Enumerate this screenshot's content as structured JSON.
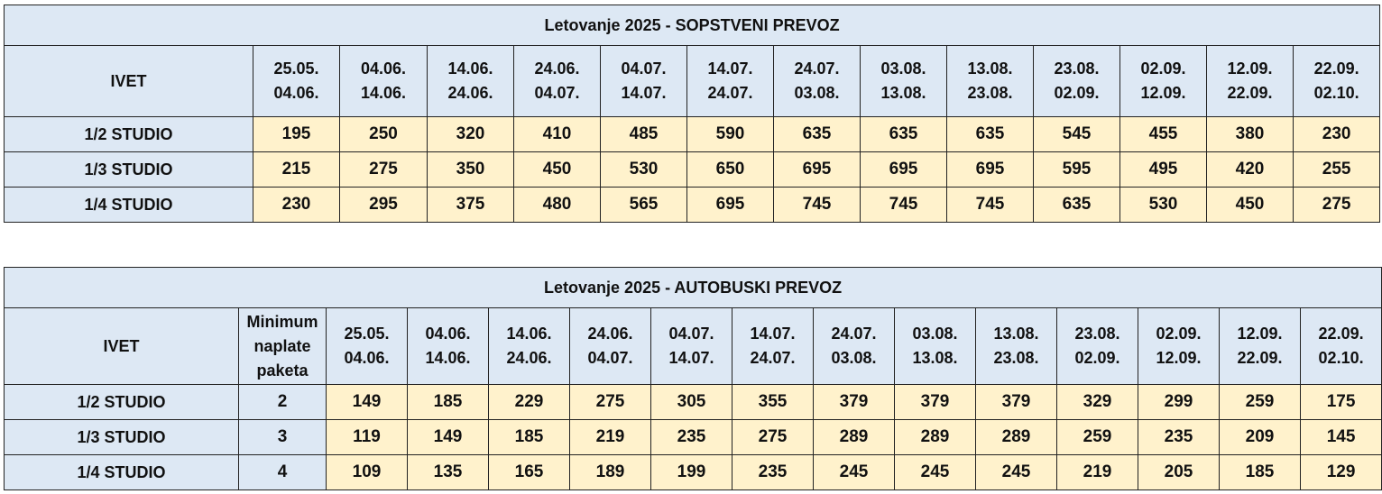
{
  "tables": [
    {
      "title": "Letovanje 2025 - SOPSTVENI PREVOZ",
      "corner": "IVET",
      "periods": [
        [
          "25.05.",
          "04.06."
        ],
        [
          "04.06.",
          "14.06."
        ],
        [
          "14.06.",
          "24.06."
        ],
        [
          "24.06.",
          "04.07."
        ],
        [
          "04.07.",
          "14.07."
        ],
        [
          "14.07.",
          "24.07."
        ],
        [
          "24.07.",
          "03.08."
        ],
        [
          "03.08.",
          "13.08."
        ],
        [
          "13.08.",
          "23.08."
        ],
        [
          "23.08.",
          "02.09."
        ],
        [
          "02.09.",
          "12.09."
        ],
        [
          "12.09.",
          "22.09."
        ],
        [
          "22.09.",
          "02.10."
        ]
      ],
      "rows": [
        {
          "name": "1/2 STUDIO",
          "values": [
            "195",
            "250",
            "320",
            "410",
            "485",
            "590",
            "635",
            "635",
            "635",
            "545",
            "455",
            "380",
            "230"
          ]
        },
        {
          "name": "1/3 STUDIO",
          "values": [
            "215",
            "275",
            "350",
            "450",
            "530",
            "650",
            "695",
            "695",
            "695",
            "595",
            "495",
            "420",
            "255"
          ]
        },
        {
          "name": "1/4 STUDIO",
          "values": [
            "230",
            "295",
            "375",
            "480",
            "565",
            "695",
            "745",
            "745",
            "745",
            "635",
            "530",
            "450",
            "275"
          ]
        }
      ]
    },
    {
      "title": "Letovanje 2025 - AUTOBUSKI PREVOZ",
      "corner": "IVET",
      "min_header": [
        "Minimum",
        "naplate",
        "paketa"
      ],
      "periods": [
        [
          "25.05.",
          "04.06."
        ],
        [
          "04.06.",
          "14.06."
        ],
        [
          "14.06.",
          "24.06."
        ],
        [
          "24.06.",
          "04.07."
        ],
        [
          "04.07.",
          "14.07."
        ],
        [
          "14.07.",
          "24.07."
        ],
        [
          "24.07.",
          "03.08."
        ],
        [
          "03.08.",
          "13.08."
        ],
        [
          "13.08.",
          "23.08."
        ],
        [
          "23.08.",
          "02.09."
        ],
        [
          "02.09.",
          "12.09."
        ],
        [
          "12.09.",
          "22.09."
        ],
        [
          "22.09.",
          "02.10."
        ]
      ],
      "rows": [
        {
          "name": "1/2 STUDIO",
          "min": "2",
          "values": [
            "149",
            "185",
            "229",
            "275",
            "305",
            "355",
            "379",
            "379",
            "379",
            "329",
            "299",
            "259",
            "175"
          ]
        },
        {
          "name": "1/3 STUDIO",
          "min": "3",
          "values": [
            "119",
            "149",
            "185",
            "219",
            "235",
            "275",
            "289",
            "289",
            "289",
            "259",
            "235",
            "209",
            "145"
          ]
        },
        {
          "name": "1/4 STUDIO",
          "min": "4",
          "values": [
            "109",
            "135",
            "165",
            "189",
            "199",
            "235",
            "245",
            "245",
            "245",
            "219",
            "205",
            "185",
            "129"
          ]
        }
      ]
    }
  ]
}
